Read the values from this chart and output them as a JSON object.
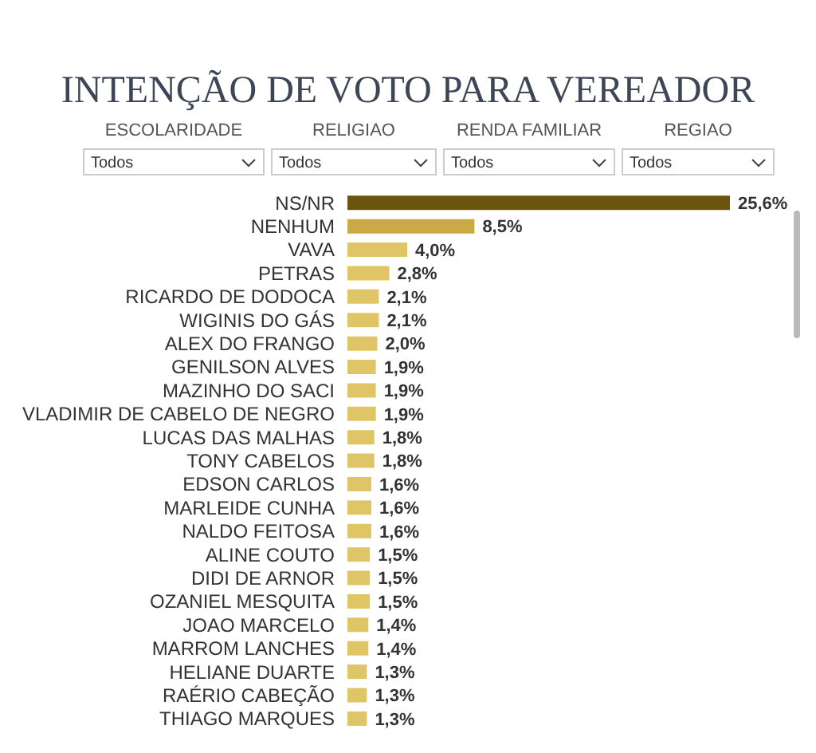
{
  "chart_data": {
    "type": "bar",
    "orientation": "horizontal",
    "title": "INTENÇÃO DE VOTO PARA VEREADOR",
    "annotations": [
      "ESCOLARIDADE",
      "Todos",
      "RELIGIAO",
      "Todos",
      "RENDA FAMILIAR",
      "Todos",
      "REGIAO",
      "Todos"
    ],
    "categories": [
      "NS/NR",
      "NENHUM",
      "VAVA",
      "PETRAS",
      "RICARDO DE DODOCA",
      "WIGINIS DO GÁS",
      "ALEX DO FRANGO",
      "GENILSON ALVES",
      "MAZINHO DO SACI",
      "VLADIMIR DE CABELO DE NEGRO",
      "LUCAS DAS MALHAS",
      "TONY CABELOS",
      "EDSON CARLOS",
      "MARLEIDE CUNHA",
      "NALDO FEITOSA",
      "ALINE COUTO",
      "DIDI DE ARNOR",
      "OZANIEL MESQUITA",
      "JOAO MARCELO",
      "MARROM LANCHES",
      "HELIANE DUARTE",
      "RAÉRIO CABEÇÃO",
      "THIAGO MARQUES"
    ],
    "values": [
      25.6,
      8.5,
      4.0,
      2.8,
      2.1,
      2.1,
      2.0,
      1.9,
      1.9,
      1.9,
      1.8,
      1.8,
      1.6,
      1.6,
      1.6,
      1.5,
      1.5,
      1.5,
      1.4,
      1.4,
      1.3,
      1.3,
      1.3
    ],
    "value_labels": [
      "25,6%",
      "8,5%",
      "4,0%",
      "2,8%",
      "2,1%",
      "2,1%",
      "2,0%",
      "1,9%",
      "1,9%",
      "1,9%",
      "1,8%",
      "1,8%",
      "1,6%",
      "1,6%",
      "1,6%",
      "1,5%",
      "1,5%",
      "1,5%",
      "1,4%",
      "1,4%",
      "1,3%",
      "1,3%",
      "1,3%"
    ],
    "colors": [
      "#6b5410",
      "#c9aa45",
      "#dfc566",
      "#dfc566",
      "#dfc566",
      "#dfc566",
      "#dfc566",
      "#dfc566",
      "#dfc566",
      "#dfc566",
      "#dfc566",
      "#dfc566",
      "#dfc566",
      "#dfc566",
      "#dfc566",
      "#dfc566",
      "#dfc566",
      "#dfc566",
      "#dfc566",
      "#dfc566",
      "#dfc566",
      "#dfc566",
      "#dfc566"
    ]
  }
}
